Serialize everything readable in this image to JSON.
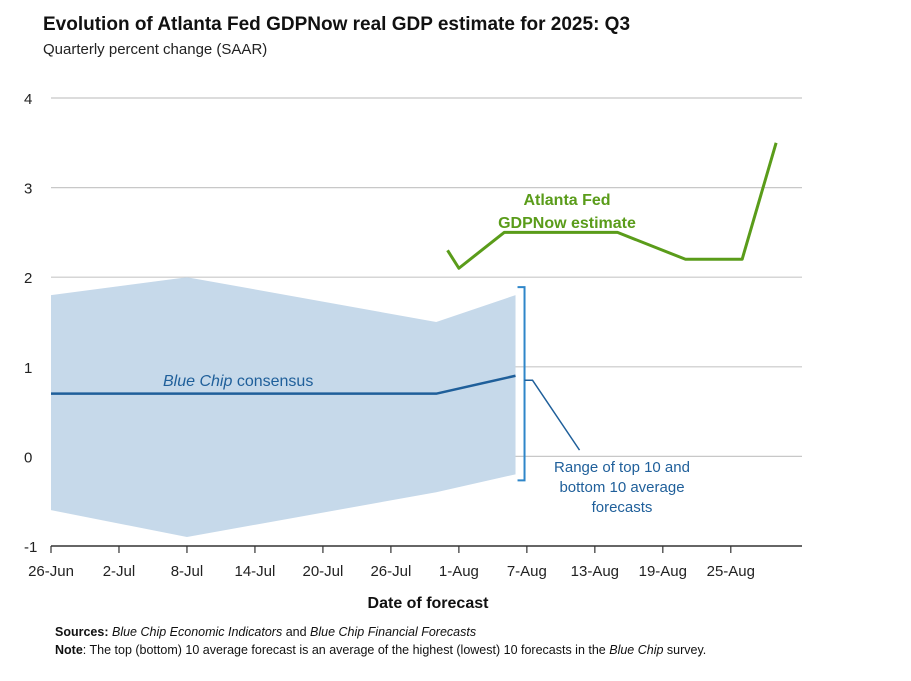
{
  "header": {
    "title": "Evolution of Atlanta Fed GDPNow real GDP estimate for 2025: Q3",
    "subtitle": "Quarterly percent change (SAAR)"
  },
  "footer": {
    "sources_label": "Sources:",
    "sources_part1": "Blue Chip Economic Indicators",
    "sources_and": " and ",
    "sources_part2": "Blue Chip Financial Forecasts",
    "note_label": "Note",
    "note_text1": ": The top (bottom) 10 average forecast is an average of the highest (lowest) 10 forecasts in the ",
    "note_italic": "Blue Chip",
    "note_text2": " survey."
  },
  "colors": {
    "gdpnow": "#5a9c1a",
    "consensus": "#1f5f9a",
    "range_fill": "#c6d9ea",
    "range_bracket": "#2f86c9",
    "grid": "#c8c8c8",
    "axis": "#333333"
  },
  "chart_data": {
    "type": "line",
    "xlabel": "Date of forecast",
    "ylabel": "",
    "ylim": [
      -1,
      4
    ],
    "yticks": [
      -1,
      0,
      1,
      2,
      3,
      4
    ],
    "x_tick_labels": [
      "26-Jun",
      "2-Jul",
      "8-Jul",
      "14-Jul",
      "20-Jul",
      "26-Jul",
      "1-Aug",
      "7-Aug",
      "13-Aug",
      "19-Aug",
      "25-Aug"
    ],
    "x_tick_dates": [
      "2025-06-26",
      "2025-07-02",
      "2025-07-08",
      "2025-07-14",
      "2025-07-20",
      "2025-07-26",
      "2025-08-01",
      "2025-08-07",
      "2025-08-13",
      "2025-08-19",
      "2025-08-25"
    ],
    "grid": "horizontal",
    "series": [
      {
        "name": "Atlanta Fed GDPNow estimate",
        "label_lines": [
          "Atlanta Fed",
          "GDPNow estimate"
        ],
        "points": [
          {
            "x": "2025-07-31",
            "y": 2.3
          },
          {
            "x": "2025-08-01",
            "y": 2.1
          },
          {
            "x": "2025-08-05",
            "y": 2.5
          },
          {
            "x": "2025-08-15",
            "y": 2.5
          },
          {
            "x": "2025-08-21",
            "y": 2.2
          },
          {
            "x": "2025-08-26",
            "y": 2.2
          },
          {
            "x": "2025-08-29",
            "y": 3.5
          }
        ]
      },
      {
        "name": "Blue Chip consensus",
        "label_italic": "Blue Chip",
        "label_rest": " consensus",
        "points": [
          {
            "x": "2025-06-26",
            "y": 0.7
          },
          {
            "x": "2025-07-30",
            "y": 0.7
          },
          {
            "x": "2025-08-06",
            "y": 0.9
          }
        ]
      }
    ],
    "band": {
      "label_lines": [
        "Range of top 10 and",
        "bottom 10 average",
        "forecasts"
      ],
      "upper": [
        {
          "x": "2025-06-26",
          "y": 1.8
        },
        {
          "x": "2025-07-08",
          "y": 2.0
        },
        {
          "x": "2025-07-30",
          "y": 1.5
        },
        {
          "x": "2025-08-06",
          "y": 1.8
        }
      ],
      "lower": [
        {
          "x": "2025-06-26",
          "y": -0.6
        },
        {
          "x": "2025-07-08",
          "y": -0.9
        },
        {
          "x": "2025-07-30",
          "y": -0.4
        },
        {
          "x": "2025-08-06",
          "y": -0.2
        }
      ]
    }
  }
}
